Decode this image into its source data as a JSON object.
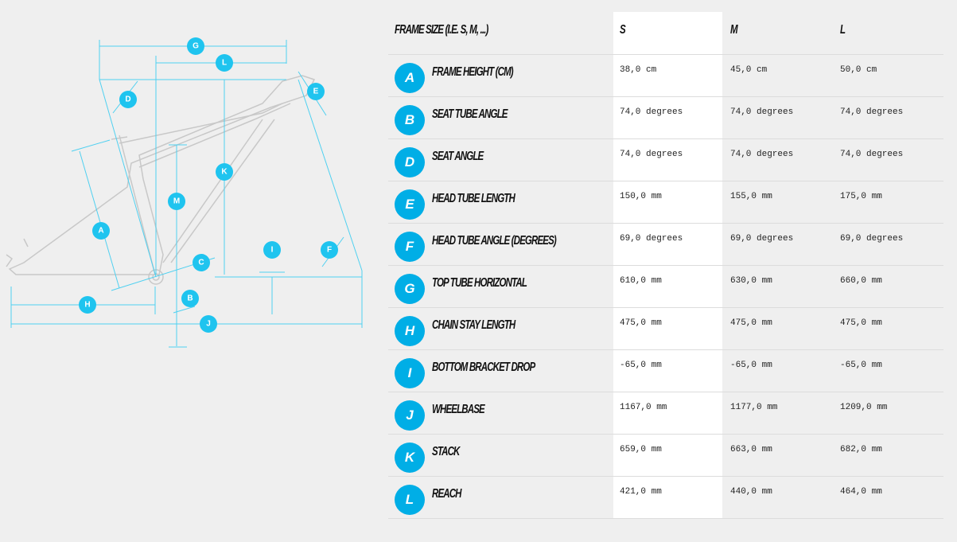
{
  "diagram": {
    "markers": [
      "G",
      "L",
      "E",
      "D",
      "K",
      "M",
      "A",
      "C",
      "I",
      "F",
      "H",
      "B",
      "J"
    ]
  },
  "table": {
    "header": [
      "Frame size (i.e. S, M, ...)",
      "S",
      "M",
      "L"
    ],
    "rows": [
      {
        "letter": "A",
        "name": "Frame height (cm)",
        "values": [
          "38,0 cm",
          "45,0 cm",
          "50,0 cm"
        ]
      },
      {
        "letter": "B",
        "name": "Seat tube angle",
        "values": [
          "74,0 degrees",
          "74,0 degrees",
          "74,0 degrees"
        ]
      },
      {
        "letter": "D",
        "name": "Seat angle",
        "values": [
          "74,0 degrees",
          "74,0 degrees",
          "74,0 degrees"
        ]
      },
      {
        "letter": "E",
        "name": "Head tube length",
        "values": [
          "150,0 mm",
          "155,0 mm",
          "175,0 mm"
        ]
      },
      {
        "letter": "F",
        "name": "Head tube angle (degrees)",
        "values": [
          "69,0 degrees",
          "69,0 degrees",
          "69,0 degrees"
        ]
      },
      {
        "letter": "G",
        "name": "Top tube horizontal",
        "values": [
          "610,0 mm",
          "630,0 mm",
          "660,0 mm"
        ]
      },
      {
        "letter": "H",
        "name": "Chain stay length",
        "values": [
          "475,0 mm",
          "475,0 mm",
          "475,0 mm"
        ]
      },
      {
        "letter": "I",
        "name": "Bottom bracket drop",
        "values": [
          "-65,0 mm",
          "-65,0 mm",
          "-65,0 mm"
        ]
      },
      {
        "letter": "J",
        "name": "Wheelbase",
        "values": [
          "1167,0 mm",
          "1177,0 mm",
          "1209,0 mm"
        ]
      },
      {
        "letter": "K",
        "name": "Stack",
        "values": [
          "659,0 mm",
          "663,0 mm",
          "682,0 mm"
        ]
      },
      {
        "letter": "L",
        "name": "Reach",
        "values": [
          "421,0 mm",
          "440,0 mm",
          "464,0 mm"
        ]
      }
    ]
  }
}
